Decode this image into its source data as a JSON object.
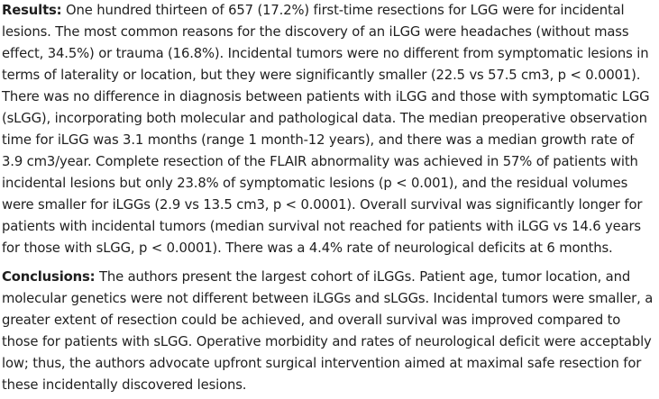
{
  "sections": [
    {
      "label": "Results:",
      "text": " One hundred thirteen of 657 (17.2%) first-time resections for LGG were for incidental lesions. The most common reasons for the discovery of an iLGG were headaches (without mass effect, 34.5%) or trauma (16.8%). Incidental tumors were no different from symptomatic lesions in terms of laterality or location, but they were significantly smaller (22.5 vs 57.5 cm3, p < 0.0001). There was no difference in diagnosis between patients with iLGG and those with symptomatic LGG (sLGG), incorporating both molecular and pathological data. The median preoperative observation time for iLGG was 3.1 months (range 1 month-12 years), and there was a median growth rate of 3.9 cm3/year. Complete resection of the FLAIR abnormality was achieved in 57% of patients with incidental lesions but only 23.8% of symptomatic lesions (p < 0.001), and the residual volumes were smaller for iLGGs (2.9 vs 13.5 cm3, p < 0.0001). Overall survival was significantly longer for patients with incidental tumors (median survival not reached for patients with iLGG vs 14.6 years for those with sLGG, p < 0.0001). There was a 4.4% rate of neurological deficits at 6 months."
    },
    {
      "label": "Conclusions:",
      "text": " The authors present the largest cohort of iLGGs. Patient age, tumor location, and molecular genetics were not different between iLGGs and sLGGs. Incidental tumors were smaller, a greater extent of resection could be achieved, and overall survival was improved compared to those for patients with sLGG. Operative morbidity and rates of neurological deficit were acceptably low; thus, the authors advocate upfront surgical intervention aimed at maximal safe resection for these incidentally discovered lesions."
    }
  ]
}
